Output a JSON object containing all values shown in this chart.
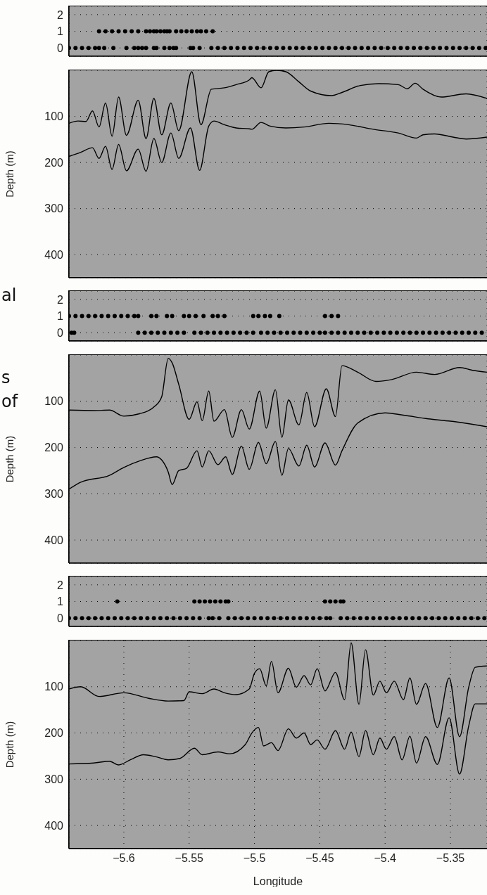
{
  "chart_data": [
    {
      "type": "scatter",
      "marker": "circle",
      "grid": true,
      "tick_labels": "y",
      "xlim": [
        -5.642,
        -5.322
      ],
      "xticks": [
        {
          "value": -5.6,
          "label": null
        },
        {
          "value": -5.55,
          "label": null
        },
        {
          "value": -5.5,
          "label": null
        },
        {
          "value": -5.45,
          "label": null
        },
        {
          "value": -5.4,
          "label": null
        },
        {
          "value": -5.35,
          "label": null
        }
      ],
      "ylim": [
        -0.5,
        2.5
      ],
      "yticks": [
        0,
        1,
        2
      ],
      "series": [
        {
          "color": "#000000",
          "x": [
            -5.642,
            -5.637,
            -5.632,
            -5.627,
            -5.622,
            -5.619,
            -5.615,
            -5.608,
            -5.598,
            -5.592,
            -5.589,
            -5.586,
            -5.583,
            -5.577,
            -5.575,
            -5.569,
            -5.565,
            -5.562,
            -5.56,
            -5.549,
            -5.547,
            -5.542,
            -5.533,
            -5.528,
            -5.523,
            -5.518,
            -5.513,
            -5.508,
            -5.503,
            -5.498,
            -5.493,
            -5.488,
            -5.483,
            -5.478,
            -5.473,
            -5.468,
            -5.463,
            -5.458,
            -5.453,
            -5.448,
            -5.443,
            -5.438,
            -5.433,
            -5.428,
            -5.423,
            -5.418,
            -5.413,
            -5.408,
            -5.403,
            -5.398,
            -5.393,
            -5.388,
            -5.383,
            -5.378,
            -5.373,
            -5.368,
            -5.363,
            -5.358,
            -5.353,
            -5.348,
            -5.343,
            -5.338,
            -5.333,
            -5.328,
            -5.323
          ],
          "values": [
            0,
            0,
            0,
            0,
            0,
            0,
            0,
            0,
            0,
            0,
            0,
            0,
            0,
            0,
            0,
            0,
            0,
            0,
            0,
            0,
            0,
            0,
            0,
            0,
            0,
            0,
            0,
            0,
            0,
            0,
            0,
            0,
            0,
            0,
            0,
            0,
            0,
            0,
            0,
            0,
            0,
            0,
            0,
            0,
            0,
            0,
            0,
            0,
            0,
            0,
            0,
            0,
            0,
            0,
            0,
            0,
            0,
            0,
            0,
            0,
            0,
            0,
            0,
            0,
            0
          ]
        },
        {
          "color": "#000000",
          "x": [
            -5.619,
            -5.614,
            -5.609,
            -5.604,
            -5.599,
            -5.594,
            -5.589,
            -5.583,
            -5.58,
            -5.577,
            -5.575,
            -5.572,
            -5.569,
            -5.567,
            -5.565,
            -5.56,
            -5.556,
            -5.552,
            -5.548,
            -5.544,
            -5.541,
            -5.537,
            -5.532
          ],
          "values": [
            1,
            1,
            1,
            1,
            1,
            1,
            1,
            1,
            1,
            1,
            1,
            1,
            1,
            1,
            1,
            1,
            1,
            1,
            1,
            1,
            1,
            1,
            1
          ]
        }
      ]
    },
    {
      "type": "line",
      "marker": "none",
      "line_style": "solid",
      "grid": true,
      "tick_labels": "y",
      "ylabel": "Depth (m)",
      "xlim": [
        -5.642,
        -5.322
      ],
      "xticks": [
        {
          "value": -5.6,
          "label": null
        },
        {
          "value": -5.55,
          "label": null
        },
        {
          "value": -5.5,
          "label": null
        },
        {
          "value": -5.45,
          "label": null
        },
        {
          "value": -5.4,
          "label": null
        },
        {
          "value": -5.35,
          "label": null
        }
      ],
      "ylim": [
        450,
        0
      ],
      "yticks": [
        100,
        200,
        300,
        400
      ],
      "series": [
        {
          "color": "#000000",
          "x": [
            -5.642,
            -5.635,
            -5.629,
            -5.624,
            -5.619,
            -5.614,
            -5.609,
            -5.604,
            -5.598,
            -5.589,
            -5.583,
            -5.577,
            -5.571,
            -5.564,
            -5.558,
            -5.548,
            -5.541,
            -5.533,
            -5.523,
            -5.514,
            -5.504,
            -5.502,
            -5.495,
            -5.489,
            -5.483,
            -5.476,
            -5.466,
            -5.457,
            -5.441,
            -5.433,
            -5.419,
            -5.405,
            -5.39,
            -5.383,
            -5.377,
            -5.371,
            -5.357,
            -5.338,
            -5.322
          ],
          "values": [
            115,
            110,
            111,
            88,
            123,
            71,
            143,
            58,
            141,
            65,
            148,
            61,
            140,
            71,
            131,
            3,
            118,
            41,
            38,
            31,
            21,
            16,
            38,
            3,
            0,
            3,
            25,
            45,
            55,
            48,
            33,
            29,
            31,
            40,
            28,
            41,
            58,
            51,
            61
          ]
        },
        {
          "color": "#000000",
          "x": [
            -5.642,
            -5.633,
            -5.624,
            -5.619,
            -5.614,
            -5.609,
            -5.604,
            -5.598,
            -5.589,
            -5.583,
            -5.577,
            -5.571,
            -5.564,
            -5.558,
            -5.549,
            -5.542,
            -5.535,
            -5.531,
            -5.523,
            -5.514,
            -5.504,
            -5.502,
            -5.495,
            -5.488,
            -5.476,
            -5.462,
            -5.443,
            -5.428,
            -5.409,
            -5.39,
            -5.376,
            -5.371,
            -5.362,
            -5.348,
            -5.338,
            -5.322
          ],
          "values": [
            187,
            178,
            168,
            191,
            165,
            215,
            161,
            218,
            171,
            219,
            148,
            200,
            136,
            191,
            125,
            217,
            121,
            110,
            118,
            125,
            127,
            128,
            113,
            121,
            125,
            123,
            115,
            118,
            128,
            136,
            147,
            140,
            138,
            145,
            149,
            145
          ]
        }
      ]
    },
    {
      "type": "scatter",
      "marker": "circle",
      "grid": true,
      "tick_labels": "y",
      "annotations": [
        "al"
      ],
      "xlim": [
        -5.642,
        -5.322
      ],
      "xticks": [
        {
          "value": -5.6,
          "label": null
        },
        {
          "value": -5.55,
          "label": null
        },
        {
          "value": -5.5,
          "label": null
        },
        {
          "value": -5.45,
          "label": null
        },
        {
          "value": -5.4,
          "label": null
        },
        {
          "value": -5.35,
          "label": null
        }
      ],
      "ylim": [
        -0.5,
        2.5
      ],
      "yticks": [
        0,
        1,
        2
      ],
      "series": [
        {
          "color": "#000000",
          "x": [
            -5.64,
            -5.638,
            -5.589,
            -5.584,
            -5.579,
            -5.574,
            -5.569,
            -5.564,
            -5.559,
            -5.554,
            -5.546,
            -5.541,
            -5.536,
            -5.531,
            -5.526,
            -5.521,
            -5.516,
            -5.511,
            -5.506,
            -5.501,
            -5.495,
            -5.49,
            -5.485,
            -5.48,
            -5.475,
            -5.47,
            -5.465,
            -5.46,
            -5.455,
            -5.45,
            -5.446,
            -5.441,
            -5.436,
            -5.431,
            -5.426,
            -5.421,
            -5.416,
            -5.411,
            -5.406,
            -5.401,
            -5.396,
            -5.391,
            -5.386,
            -5.381,
            -5.376,
            -5.371,
            -5.366,
            -5.361,
            -5.356,
            -5.351,
            -5.346,
            -5.341,
            -5.336,
            -5.331,
            -5.326
          ],
          "values": [
            0,
            0,
            0,
            0,
            0,
            0,
            0,
            0,
            0,
            0,
            0,
            0,
            0,
            0,
            0,
            0,
            0,
            0,
            0,
            0,
            0,
            0,
            0,
            0,
            0,
            0,
            0,
            0,
            0,
            0,
            0,
            0,
            0,
            0,
            0,
            0,
            0,
            0,
            0,
            0,
            0,
            0,
            0,
            0,
            0,
            0,
            0,
            0,
            0,
            0,
            0,
            0,
            0,
            0,
            0
          ]
        },
        {
          "color": "#000000",
          "x": [
            -5.642,
            -5.637,
            -5.632,
            -5.627,
            -5.622,
            -5.617,
            -5.612,
            -5.607,
            -5.602,
            -5.597,
            -5.592,
            -5.589,
            -5.579,
            -5.575,
            -5.567,
            -5.563,
            -5.554,
            -5.55,
            -5.545,
            -5.539,
            -5.532,
            -5.528,
            -5.523,
            -5.501,
            -5.497,
            -5.492,
            -5.488,
            -5.481,
            -5.446,
            -5.441,
            -5.436
          ],
          "values": [
            1,
            1,
            1,
            1,
            1,
            1,
            1,
            1,
            1,
            1,
            1,
            1,
            1,
            1,
            1,
            1,
            1,
            1,
            1,
            1,
            1,
            1,
            1,
            1,
            1,
            1,
            1,
            1,
            1,
            1,
            1
          ]
        }
      ]
    },
    {
      "type": "line",
      "marker": "none",
      "line_style": "solid",
      "grid": true,
      "tick_labels": "y",
      "ylabel": "Depth (m)",
      "annotations": [
        "s",
        "of"
      ],
      "xlim": [
        -5.642,
        -5.322
      ],
      "xticks": [
        {
          "value": -5.6,
          "label": null
        },
        {
          "value": -5.55,
          "label": null
        },
        {
          "value": -5.5,
          "label": null
        },
        {
          "value": -5.45,
          "label": null
        },
        {
          "value": -5.4,
          "label": null
        },
        {
          "value": -5.35,
          "label": null
        }
      ],
      "ylim": [
        450,
        0
      ],
      "yticks": [
        100,
        200,
        300,
        400
      ],
      "series": [
        {
          "color": "#000000",
          "x": [
            -5.642,
            -5.623,
            -5.611,
            -5.6,
            -5.588,
            -5.576,
            -5.571,
            -5.566,
            -5.563,
            -5.558,
            -5.55,
            -5.544,
            -5.54,
            -5.535,
            -5.531,
            -5.523,
            -5.517,
            -5.51,
            -5.504,
            -5.496,
            -5.491,
            -5.484,
            -5.479,
            -5.474,
            -5.466,
            -5.46,
            -5.454,
            -5.445,
            -5.438,
            -5.433,
            -5.421,
            -5.407,
            -5.395,
            -5.376,
            -5.362,
            -5.343,
            -5.333,
            -5.322
          ],
          "values": [
            119,
            120,
            119,
            132,
            127,
            110,
            90,
            7,
            17,
            63,
            139,
            101,
            142,
            78,
            143,
            118,
            178,
            118,
            160,
            78,
            158,
            75,
            178,
            97,
            151,
            81,
            155,
            73,
            133,
            23,
            37,
            57,
            53,
            37,
            42,
            27,
            33,
            37
          ]
        },
        {
          "color": "#000000",
          "x": [
            -5.642,
            -5.633,
            -5.611,
            -5.6,
            -5.588,
            -5.575,
            -5.571,
            -5.566,
            -5.563,
            -5.558,
            -5.552,
            -5.544,
            -5.54,
            -5.535,
            -5.528,
            -5.522,
            -5.517,
            -5.51,
            -5.504,
            -5.497,
            -5.491,
            -5.484,
            -5.479,
            -5.474,
            -5.466,
            -5.46,
            -5.454,
            -5.446,
            -5.438,
            -5.433,
            -5.421,
            -5.4,
            -5.386,
            -5.367,
            -5.35,
            -5.322
          ],
          "values": [
            290,
            275,
            260,
            243,
            229,
            220,
            227,
            253,
            280,
            250,
            245,
            207,
            242,
            207,
            237,
            220,
            258,
            197,
            247,
            189,
            235,
            187,
            260,
            202,
            240,
            195,
            242,
            190,
            238,
            207,
            147,
            125,
            130,
            138,
            143,
            155
          ]
        }
      ]
    },
    {
      "type": "scatter",
      "marker": "circle",
      "grid": true,
      "tick_labels": "y",
      "xlim": [
        -5.642,
        -5.322
      ],
      "xticks": [
        {
          "value": -5.6,
          "label": null
        },
        {
          "value": -5.55,
          "label": null
        },
        {
          "value": -5.5,
          "label": null
        },
        {
          "value": -5.45,
          "label": null
        },
        {
          "value": -5.4,
          "label": null
        },
        {
          "value": -5.35,
          "label": null
        }
      ],
      "ylim": [
        -0.5,
        2.5
      ],
      "yticks": [
        0,
        1,
        2
      ],
      "series": [
        {
          "color": "#000000",
          "x": [
            -5.642,
            -5.637,
            -5.632,
            -5.627,
            -5.622,
            -5.617,
            -5.612,
            -5.607,
            -5.602,
            -5.597,
            -5.592,
            -5.587,
            -5.582,
            -5.577,
            -5.572,
            -5.567,
            -5.562,
            -5.557,
            -5.552,
            -5.547,
            -5.542,
            -5.535,
            -5.532,
            -5.527,
            -5.52,
            -5.515,
            -5.51,
            -5.505,
            -5.5,
            -5.495,
            -5.49,
            -5.485,
            -5.48,
            -5.475,
            -5.47,
            -5.465,
            -5.46,
            -5.455,
            -5.45,
            -5.445,
            -5.442,
            -5.434,
            -5.429,
            -5.424,
            -5.419,
            -5.414,
            -5.409,
            -5.404,
            -5.399,
            -5.394,
            -5.389,
            -5.384,
            -5.379,
            -5.374,
            -5.369,
            -5.364,
            -5.359,
            -5.354,
            -5.349,
            -5.344,
            -5.339,
            -5.334,
            -5.329,
            -5.324
          ],
          "values": [
            0,
            0,
            0,
            0,
            0,
            0,
            0,
            0,
            0,
            0,
            0,
            0,
            0,
            0,
            0,
            0,
            0,
            0,
            0,
            0,
            0,
            0,
            0,
            0,
            0,
            0,
            0,
            0,
            0,
            0,
            0,
            0,
            0,
            0,
            0,
            0,
            0,
            0,
            0,
            0,
            0,
            0,
            0,
            0,
            0,
            0,
            0,
            0,
            0,
            0,
            0,
            0,
            0,
            0,
            0,
            0,
            0,
            0,
            0,
            0,
            0,
            0,
            0,
            0
          ]
        },
        {
          "color": "#000000",
          "x": [
            -5.605,
            -5.546,
            -5.542,
            -5.538,
            -5.534,
            -5.53,
            -5.526,
            -5.522,
            -5.52,
            -5.446,
            -5.442,
            -5.438,
            -5.434,
            -5.432
          ],
          "values": [
            1,
            1,
            1,
            1,
            1,
            1,
            1,
            1,
            1,
            1,
            1,
            1,
            1,
            1
          ]
        }
      ]
    },
    {
      "type": "line",
      "marker": "none",
      "line_style": "solid",
      "grid": true,
      "ylabel": "Depth (m)",
      "xlabel": "Longitude",
      "xlim": [
        -5.642,
        -5.322
      ],
      "xticks": [
        {
          "value": -5.6,
          "label": "−5.6"
        },
        {
          "value": -5.55,
          "label": "−5.55"
        },
        {
          "value": -5.5,
          "label": "−5.5"
        },
        {
          "value": -5.45,
          "label": "−5.45"
        },
        {
          "value": -5.4,
          "label": "−5.4"
        },
        {
          "value": -5.35,
          "label": "−5.35"
        }
      ],
      "ylim": [
        450,
        0
      ],
      "yticks": [
        100,
        200,
        300,
        400
      ],
      "series": [
        {
          "color": "#000000",
          "x": [
            -5.642,
            -5.633,
            -5.619,
            -5.6,
            -5.581,
            -5.566,
            -5.554,
            -5.55,
            -5.54,
            -5.531,
            -5.523,
            -5.514,
            -5.504,
            -5.5,
            -5.496,
            -5.491,
            -5.487,
            -5.482,
            -5.474,
            -5.468,
            -5.462,
            -5.457,
            -5.452,
            -5.446,
            -5.438,
            -5.431,
            -5.426,
            -5.42,
            -5.415,
            -5.409,
            -5.404,
            -5.399,
            -5.393,
            -5.386,
            -5.381,
            -5.376,
            -5.369,
            -5.36,
            -5.351,
            -5.343,
            -5.336,
            -5.331,
            -5.322
          ],
          "values": [
            105,
            100,
            121,
            113,
            125,
            131,
            130,
            111,
            115,
            105,
            113,
            117,
            105,
            71,
            61,
            98,
            45,
            113,
            60,
            101,
            76,
            96,
            61,
            109,
            69,
            128,
            5,
            138,
            20,
            118,
            88,
            113,
            88,
            128,
            81,
            138,
            93,
            188,
            81,
            208,
            101,
            58,
            55
          ]
        },
        {
          "color": "#000000",
          "x": [
            -5.642,
            -5.623,
            -5.611,
            -5.604,
            -5.595,
            -5.585,
            -5.576,
            -5.566,
            -5.557,
            -5.546,
            -5.54,
            -5.528,
            -5.519,
            -5.507,
            -5.502,
            -5.497,
            -5.493,
            -5.487,
            -5.482,
            -5.474,
            -5.468,
            -5.462,
            -5.457,
            -5.452,
            -5.446,
            -5.438,
            -5.431,
            -5.426,
            -5.42,
            -5.415,
            -5.409,
            -5.404,
            -5.399,
            -5.393,
            -5.387,
            -5.381,
            -5.376,
            -5.369,
            -5.36,
            -5.351,
            -5.343,
            -5.336,
            -5.331,
            -5.322
          ],
          "values": [
            267,
            265,
            261,
            269,
            258,
            247,
            251,
            258,
            255,
            233,
            247,
            241,
            245,
            225,
            200,
            188,
            228,
            221,
            238,
            191,
            211,
            200,
            225,
            215,
            235,
            195,
            235,
            198,
            251,
            195,
            247,
            211,
            235,
            208,
            258,
            207,
            265,
            208,
            268,
            167,
            289,
            185,
            137,
            137
          ]
        }
      ]
    }
  ]
}
